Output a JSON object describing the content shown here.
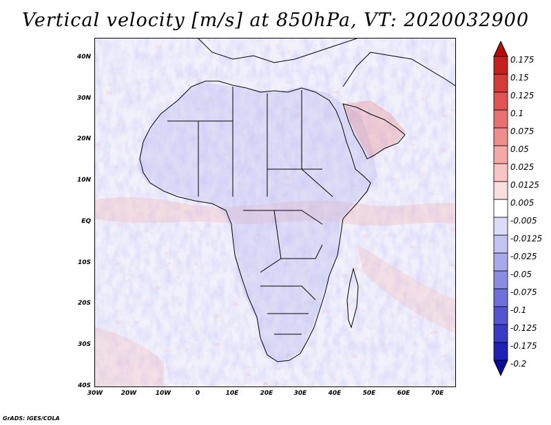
{
  "title": "Vertical velocity [m/s] at 850hPa, VT: 2020032900",
  "credit": "GrADS: IGES/COLA",
  "y_axis_labels": [
    "40N",
    "30N",
    "20N",
    "10N",
    "EQ",
    "10S",
    "20S",
    "30S",
    "40S"
  ],
  "x_axis_labels": [
    "30W",
    "20W",
    "10W",
    "0",
    "10E",
    "20E",
    "30E",
    "40E",
    "50E",
    "60E",
    "70E"
  ],
  "colorbar": {
    "labels": [
      "0.175",
      "0.15",
      "0.125",
      "0.1",
      "0.075",
      "0.05",
      "0.025",
      "0.0125",
      "0.005",
      "-0.005",
      "-0.0125",
      "-0.025",
      "-0.05",
      "-0.075",
      "-0.1",
      "-0.125",
      "-0.175",
      "-0.2"
    ],
    "colors": [
      "#b40c0c",
      "#c42020",
      "#d43a3a",
      "#e05454",
      "#e87070",
      "#ef8c8c",
      "#f4a8a8",
      "#f8c4c4",
      "#fbdede",
      "#ffffff",
      "#dcdcf8",
      "#c4c4f2",
      "#a8a8ec",
      "#8c8ce4",
      "#7070dc",
      "#5454d2",
      "#3a3ac4",
      "#2020b4",
      "#0c0c9c"
    ]
  },
  "legend_colors": {
    "ascent": "#d43a3a",
    "descent": "#5454d2",
    "neutral": "#ffffff"
  }
}
